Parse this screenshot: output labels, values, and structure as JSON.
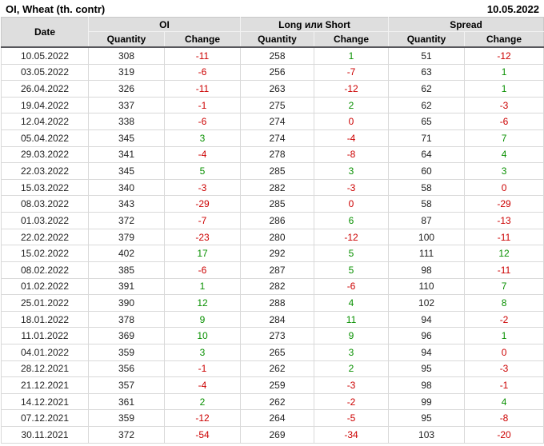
{
  "title": "OI, Wheat (th. contr)",
  "report_date": "10.05.2022",
  "colors": {
    "negative_change": "#cc0000",
    "positive_change": "#089000",
    "header_bg": "#dedede"
  },
  "table": {
    "group_headers": [
      "Date",
      "OI",
      "Long или Short",
      "Spread"
    ],
    "sub_headers": [
      "Quantity",
      "Change",
      "Quantity",
      "Change",
      "Quantity",
      "Change"
    ],
    "change_col_indexes": [
      2,
      4,
      6
    ],
    "rows": [
      [
        "10.05.2022",
        "308",
        "-11",
        "258",
        "1",
        "51",
        "-12"
      ],
      [
        "03.05.2022",
        "319",
        "-6",
        "256",
        "-7",
        "63",
        "1"
      ],
      [
        "26.04.2022",
        "326",
        "-11",
        "263",
        "-12",
        "62",
        "1"
      ],
      [
        "19.04.2022",
        "337",
        "-1",
        "275",
        "2",
        "62",
        "-3"
      ],
      [
        "12.04.2022",
        "338",
        "-6",
        "274",
        "0",
        "65",
        "-6"
      ],
      [
        "05.04.2022",
        "345",
        "3",
        "274",
        "-4",
        "71",
        "7"
      ],
      [
        "29.03.2022",
        "341",
        "-4",
        "278",
        "-8",
        "64",
        "4"
      ],
      [
        "22.03.2022",
        "345",
        "5",
        "285",
        "3",
        "60",
        "3"
      ],
      [
        "15.03.2022",
        "340",
        "-3",
        "282",
        "-3",
        "58",
        "0"
      ],
      [
        "08.03.2022",
        "343",
        "-29",
        "285",
        "0",
        "58",
        "-29"
      ],
      [
        "01.03.2022",
        "372",
        "-7",
        "286",
        "6",
        "87",
        "-13"
      ],
      [
        "22.02.2022",
        "379",
        "-23",
        "280",
        "-12",
        "100",
        "-11"
      ],
      [
        "15.02.2022",
        "402",
        "17",
        "292",
        "5",
        "111",
        "12"
      ],
      [
        "08.02.2022",
        "385",
        "-6",
        "287",
        "5",
        "98",
        "-11"
      ],
      [
        "01.02.2022",
        "391",
        "1",
        "282",
        "-6",
        "110",
        "7"
      ],
      [
        "25.01.2022",
        "390",
        "12",
        "288",
        "4",
        "102",
        "8"
      ],
      [
        "18.01.2022",
        "378",
        "9",
        "284",
        "11",
        "94",
        "-2"
      ],
      [
        "11.01.2022",
        "369",
        "10",
        "273",
        "9",
        "96",
        "1"
      ],
      [
        "04.01.2022",
        "359",
        "3",
        "265",
        "3",
        "94",
        "0"
      ],
      [
        "28.12.2021",
        "356",
        "-1",
        "262",
        "2",
        "95",
        "-3"
      ],
      [
        "21.12.2021",
        "357",
        "-4",
        "259",
        "-3",
        "98",
        "-1"
      ],
      [
        "14.12.2021",
        "361",
        "2",
        "262",
        "-2",
        "99",
        "4"
      ],
      [
        "07.12.2021",
        "359",
        "-12",
        "264",
        "-5",
        "95",
        "-8"
      ],
      [
        "30.11.2021",
        "372",
        "-54",
        "269",
        "-34",
        "103",
        "-20"
      ]
    ]
  }
}
